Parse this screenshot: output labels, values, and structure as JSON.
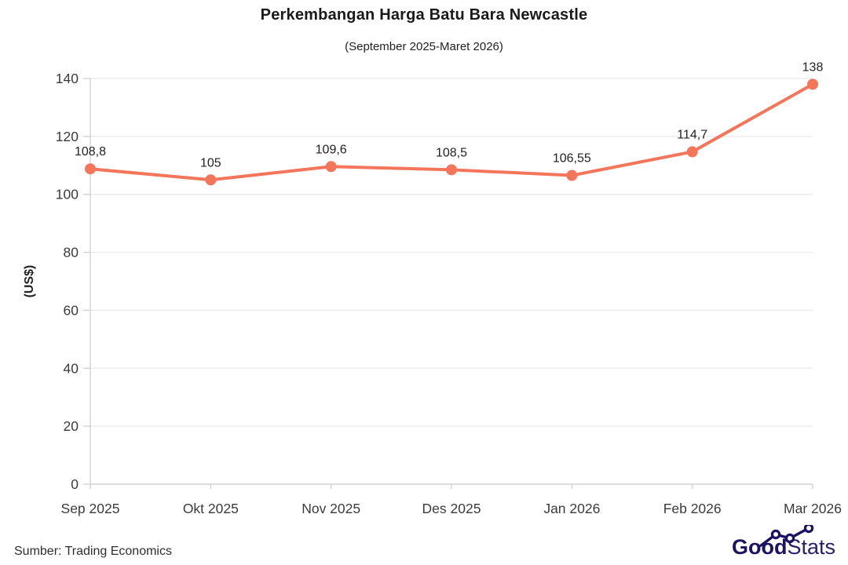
{
  "title": "Perkembangan Harga Batu Bara Newcastle",
  "subtitle": "(September 2025-Maret 2026)",
  "footer": {
    "source": "Sumber: Trading Economics"
  },
  "logo": {
    "bold": "Good",
    "light": "Stats",
    "color": "#1b1464"
  },
  "chart_data": {
    "type": "line",
    "categories": [
      "Sep 2025",
      "Okt 2025",
      "Nov 2025",
      "Des 2025",
      "Jan 2026",
      "Feb 2026",
      "Mar 2026"
    ],
    "values": [
      108.8,
      105,
      109.6,
      108.5,
      106.55,
      114.7,
      138
    ],
    "point_labels": [
      "108,8",
      "105",
      "109,6",
      "108,5",
      "106,55",
      "114,7",
      "138"
    ],
    "ylabel": "(US$)",
    "ylim": [
      0,
      140
    ],
    "ytick_step": 20,
    "grid": true,
    "legend": false,
    "line_color": "#f4765a",
    "marker_color": "#f4765a",
    "grid_color": "#e9e9e9",
    "axis_color": "#d2d2d2",
    "tick_label_color": "#3b3b3b",
    "point_label_color": "#222222"
  }
}
